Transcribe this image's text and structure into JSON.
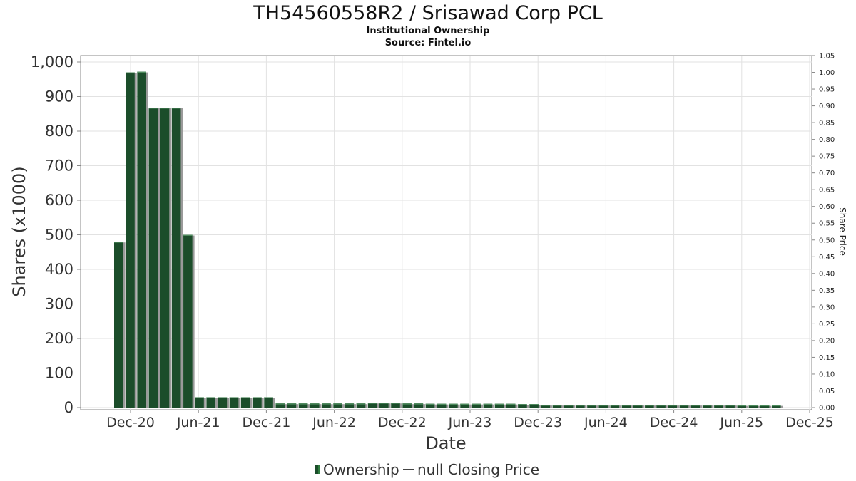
{
  "chart_data": {
    "type": "bar",
    "title": "TH54560558R2 / Srisawad Corp PCL",
    "subtitle_lines": [
      "Institutional Ownership",
      "Source: Fintel.io"
    ],
    "xlabel": "Date",
    "ylabel": "Shares (x1000)",
    "y2label": "Share Price",
    "ylim": [
      0,
      1000
    ],
    "y2lim": [
      0,
      1.05
    ],
    "yticks": [
      "0",
      "100",
      "200",
      "300",
      "400",
      "500",
      "600",
      "700",
      "800",
      "900",
      "1,000"
    ],
    "y2ticks": [
      "0.00",
      "0.05",
      "0.10",
      "0.15",
      "0.20",
      "0.25",
      "0.30",
      "0.35",
      "0.40",
      "0.45",
      "0.50",
      "0.55",
      "0.60",
      "0.65",
      "0.70",
      "0.75",
      "0.80",
      "0.85",
      "0.90",
      "0.95",
      "1.00",
      "1.05"
    ],
    "xticks": [
      "Dec-20",
      "Jun-21",
      "Dec-21",
      "Jun-22",
      "Dec-22",
      "Jun-23",
      "Dec-23",
      "Jun-24",
      "Dec-24",
      "Jun-25",
      "Dec-25"
    ],
    "grid": true,
    "legend_position": "bottom",
    "series": [
      {
        "name": "Ownership",
        "color": "#1b4d2a",
        "values": [
          480,
          970,
          972,
          868,
          868,
          868,
          500,
          30,
          30,
          30,
          30,
          30,
          30,
          30,
          12,
          12,
          12,
          12,
          12,
          12,
          12,
          12,
          14,
          14,
          14,
          12,
          12,
          11,
          11,
          11,
          11,
          11,
          11,
          11,
          11,
          10,
          10,
          8,
          8,
          8,
          8,
          8,
          8,
          8,
          8,
          8,
          8,
          8,
          8,
          8,
          8,
          8,
          8,
          8,
          7,
          7,
          7,
          7
        ]
      },
      {
        "name": "null Closing Price",
        "color": "#444444",
        "values": []
      }
    ]
  }
}
